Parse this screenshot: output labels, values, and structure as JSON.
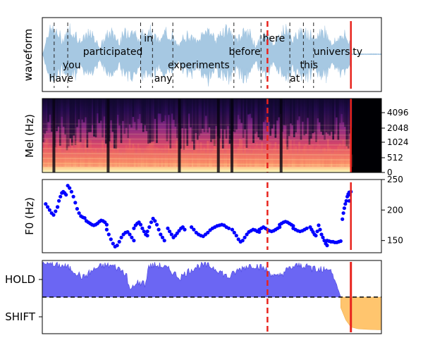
{
  "chart_data": [
    {
      "type": "area",
      "panel": "waveform",
      "ylabel": "waveform",
      "words": [
        {
          "text": "have",
          "x": 0.02
        },
        {
          "text": "you",
          "x": 0.06
        },
        {
          "text": "participated",
          "x": 0.12
        },
        {
          "text": "in",
          "x": 0.3
        },
        {
          "text": "any",
          "x": 0.33
        },
        {
          "text": "experiments",
          "x": 0.37
        },
        {
          "text": "before",
          "x": 0.55
        },
        {
          "text": "here",
          "x": 0.65
        },
        {
          "text": "at",
          "x": 0.73
        },
        {
          "text": "this",
          "x": 0.76
        },
        {
          "text": "university",
          "x": 0.8
        }
      ],
      "word_boundaries": [
        0.035,
        0.075,
        0.29,
        0.325,
        0.385,
        0.565,
        0.645,
        0.73,
        0.77,
        0.8
      ],
      "current_marker": 0.664,
      "end_marker": 0.91
    },
    {
      "type": "heatmap",
      "panel": "mel",
      "ylabel": "Mel (Hz)",
      "yticks": [
        "0",
        "512",
        "1024",
        "2048",
        "4096"
      ],
      "current_marker": 0.664,
      "end_marker": 0.91
    },
    {
      "type": "scatter",
      "panel": "f0",
      "ylabel": "F0 (Hz)",
      "ylim": [
        130,
        250
      ],
      "yticks": [
        150,
        200,
        250
      ],
      "current_marker": 0.664,
      "end_marker": 0.91,
      "segments": [
        {
          "x0": 0.01,
          "x1": 0.045,
          "y": [
            210,
            205,
            200,
            195,
            192,
            198,
            205
          ]
        },
        {
          "x0": 0.045,
          "x1": 0.07,
          "y": [
            205,
            215,
            222,
            228,
            230,
            228,
            225
          ]
        },
        {
          "x0": 0.075,
          "x1": 0.125,
          "y": [
            240,
            236,
            230,
            222,
            212,
            202,
            195,
            190,
            188,
            187
          ]
        },
        {
          "x0": 0.13,
          "x1": 0.19,
          "y": [
            182,
            180,
            178,
            176,
            175,
            176,
            178,
            181,
            183,
            182,
            180,
            176
          ]
        },
        {
          "x0": 0.19,
          "x1": 0.27,
          "y": [
            168,
            160,
            152,
            145,
            140,
            142,
            148,
            155,
            160,
            163,
            164,
            160,
            155,
            150
          ]
        },
        {
          "x0": 0.27,
          "x1": 0.31,
          "y": [
            170,
            175,
            178,
            180,
            176,
            170,
            165,
            160,
            158
          ]
        },
        {
          "x0": 0.31,
          "x1": 0.36,
          "y": [
            165,
            172,
            180,
            186,
            182,
            176,
            168,
            160,
            155,
            150
          ]
        },
        {
          "x0": 0.37,
          "x1": 0.42,
          "y": [
            170,
            165,
            160,
            155,
            158,
            162,
            166,
            170,
            172,
            168
          ]
        },
        {
          "x0": 0.44,
          "x1": 0.55,
          "y": [
            172,
            168,
            163,
            160,
            158,
            157,
            160,
            163,
            167,
            170,
            172,
            174,
            175,
            176,
            175,
            172,
            170
          ]
        },
        {
          "x0": 0.56,
          "x1": 0.64,
          "y": [
            168,
            163,
            158,
            152,
            148,
            150,
            155,
            160,
            164,
            166,
            168,
            167,
            165,
            164
          ]
        },
        {
          "x0": 0.64,
          "x1": 0.7,
          "y": [
            168,
            170,
            172,
            170,
            168,
            166,
            165,
            166,
            168,
            170,
            172
          ]
        },
        {
          "x0": 0.7,
          "x1": 0.74,
          "y": [
            176,
            178,
            180,
            181,
            180,
            178,
            176,
            174
          ]
        },
        {
          "x0": 0.74,
          "x1": 0.78,
          "y": [
            170,
            168,
            166,
            165,
            166,
            168,
            170
          ]
        },
        {
          "x0": 0.79,
          "x1": 0.84,
          "y": [
            172,
            168,
            164,
            160,
            158,
            165,
            175,
            168,
            160,
            155,
            150,
            145,
            142
          ]
        },
        {
          "x0": 0.84,
          "x1": 0.88,
          "y": [
            150,
            149,
            148,
            148,
            147,
            147,
            148,
            149
          ]
        },
        {
          "x0": 0.885,
          "x1": 0.905,
          "y": [
            185,
            195,
            203,
            210,
            215,
            222,
            226,
            229
          ]
        },
        {
          "x0": 0.905,
          "x1": 0.91,
          "y": [
            215,
            225,
            230
          ]
        }
      ]
    },
    {
      "type": "area",
      "panel": "vap",
      "yticks": [
        "HOLD",
        "SHIFT"
      ],
      "current_marker": 0.664,
      "end_marker": 0.91,
      "hold_color": "#5b55f2",
      "shift_color": "#ffc266"
    }
  ]
}
